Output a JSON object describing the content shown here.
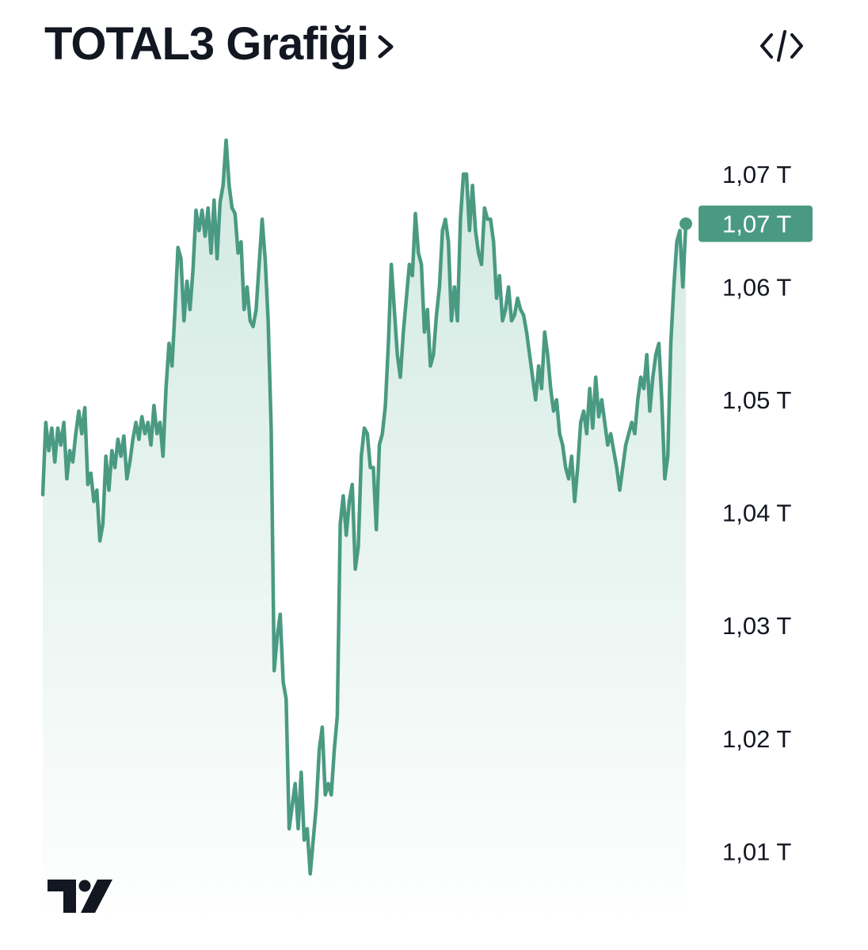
{
  "header": {
    "title": "TOTAL3 Grafiği",
    "chevron_icon": "chevron-right-icon",
    "embed_icon": "code-brackets-icon"
  },
  "logo": {
    "name": "tradingview-logo",
    "text": "TV"
  },
  "colors": {
    "line": "#4a9a82",
    "fill_top": "#cfe8e0",
    "fill_bottom": "#ffffff",
    "badge": "#4a9a82",
    "text": "#131722"
  },
  "chart_data": {
    "type": "area",
    "title": "TOTAL3 Grafiği",
    "xlabel": "",
    "ylabel": "",
    "ylim": [
      1.0035,
      1.0735
    ],
    "y_ticks": [
      {
        "value": 1.07,
        "label": "1,07 T"
      },
      {
        "value": 1.06,
        "label": "1,06 T"
      },
      {
        "value": 1.05,
        "label": "1,05 T"
      },
      {
        "value": 1.04,
        "label": "1,04 T"
      },
      {
        "value": 1.03,
        "label": "1,03 T"
      },
      {
        "value": 1.02,
        "label": "1,02 T"
      },
      {
        "value": 1.01,
        "label": "1,01 T"
      }
    ],
    "current_price": {
      "value": 1.0656,
      "label": "1,07 T"
    },
    "grid": false,
    "legend": "none",
    "series": [
      {
        "values": [
          1.0416,
          1.048,
          1.0455,
          1.0475,
          1.0445,
          1.0475,
          1.046,
          1.048,
          1.043,
          1.0455,
          1.0445,
          1.047,
          1.049,
          1.047,
          1.0493,
          1.0425,
          1.0435,
          1.041,
          1.042,
          1.0375,
          1.039,
          1.045,
          1.042,
          1.0455,
          1.044,
          1.0465,
          1.045,
          1.0468,
          1.043,
          1.0445,
          1.0465,
          1.048,
          1.0465,
          1.0485,
          1.047,
          1.048,
          1.046,
          1.0495,
          1.047,
          1.048,
          1.045,
          1.051,
          1.055,
          1.053,
          1.058,
          1.0635,
          1.0625,
          1.057,
          1.0605,
          1.058,
          1.0615,
          1.0668,
          1.065,
          1.0668,
          1.0645,
          1.067,
          1.063,
          1.0677,
          1.0625,
          1.0675,
          1.069,
          1.073,
          1.069,
          1.067,
          1.0665,
          1.063,
          1.064,
          1.058,
          1.06,
          1.057,
          1.0565,
          1.058,
          1.062,
          1.066,
          1.0625,
          1.057,
          1.0475,
          1.026,
          1.029,
          1.031,
          1.025,
          1.0235,
          1.012,
          1.014,
          1.016,
          1.012,
          1.017,
          1.011,
          1.012,
          1.008,
          1.011,
          1.014,
          1.019,
          1.021,
          1.015,
          1.016,
          1.015,
          1.019,
          1.022,
          1.039,
          1.0415,
          1.038,
          1.041,
          1.0425,
          1.035,
          1.037,
          1.045,
          1.0475,
          1.047,
          1.044,
          1.044,
          1.0385,
          1.046,
          1.047,
          1.0495,
          1.055,
          1.062,
          1.058,
          1.054,
          1.052,
          1.056,
          1.059,
          1.062,
          1.061,
          1.0665,
          1.063,
          1.062,
          1.056,
          1.058,
          1.053,
          1.054,
          1.0575,
          1.06,
          1.065,
          1.066,
          1.064,
          1.057,
          1.06,
          1.057,
          1.066,
          1.07,
          1.07,
          1.065,
          1.069,
          1.065,
          1.063,
          1.062,
          1.067,
          1.066,
          1.066,
          1.064,
          1.059,
          1.061,
          1.057,
          1.058,
          1.06,
          1.057,
          1.0575,
          1.059,
          1.058,
          1.0575,
          1.056,
          1.054,
          1.052,
          1.05,
          1.053,
          1.051,
          1.056,
          1.054,
          1.051,
          1.049,
          1.05,
          1.047,
          1.046,
          1.044,
          1.043,
          1.045,
          1.041,
          1.044,
          1.048,
          1.049,
          1.047,
          1.051,
          1.0475,
          1.052,
          1.0485,
          1.05,
          1.048,
          1.046,
          1.047,
          1.0455,
          1.044,
          1.042,
          1.044,
          1.046,
          1.047,
          1.048,
          1.047,
          1.05,
          1.052,
          1.051,
          1.054,
          1.049,
          1.052,
          1.054,
          1.055,
          1.05,
          1.043,
          1.045,
          1.055,
          1.06,
          1.064,
          1.065,
          1.06,
          1.0656
        ]
      }
    ]
  }
}
